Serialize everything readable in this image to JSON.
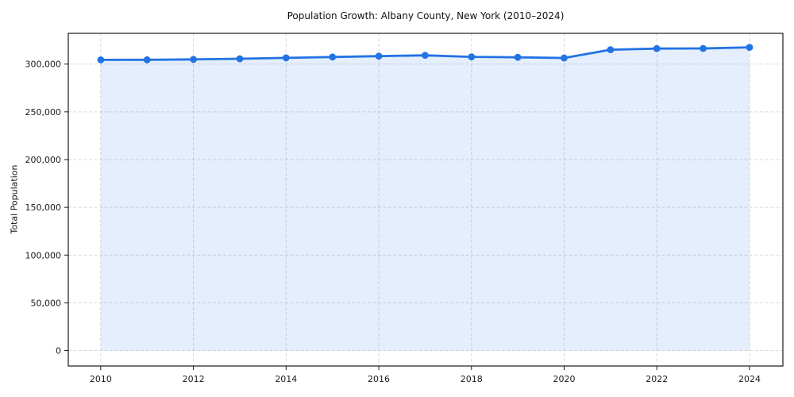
{
  "chart_data": {
    "type": "line",
    "title": "Population Growth: Albany County, New York (2010–2024)",
    "xlabel": "",
    "ylabel": "Total Population",
    "x": [
      2010,
      2011,
      2012,
      2013,
      2014,
      2015,
      2016,
      2017,
      2018,
      2019,
      2020,
      2021,
      2022,
      2023,
      2024
    ],
    "series": [
      {
        "name": "Total Population",
        "values": [
          304400,
          304500,
          304900,
          305600,
          306500,
          307400,
          308300,
          309200,
          307600,
          307100,
          306400,
          315100,
          316200,
          316400,
          317600
        ]
      }
    ],
    "x_ticks": [
      2010,
      2012,
      2014,
      2016,
      2018,
      2020,
      2022,
      2024
    ],
    "x_tick_labels": [
      "2010",
      "2012",
      "2014",
      "2016",
      "2018",
      "2020",
      "2022",
      "2024"
    ],
    "y_ticks": [
      0,
      50000,
      100000,
      150000,
      200000,
      250000,
      300000
    ],
    "y_tick_labels": [
      "0",
      "50,000",
      "100,000",
      "150,000",
      "200,000",
      "250,000",
      "300,000"
    ],
    "xlim": [
      2009.3,
      2024.72
    ],
    "ylim": [
      -16200,
      332200
    ],
    "grid": {
      "visible": true,
      "style": "dashed",
      "color": "#d9d9d9"
    },
    "legend": {
      "visible": false
    },
    "colors": {
      "line": "#2273e3",
      "marker": "#2273e3",
      "area_fill": "rgba(34, 115, 227, 0.12)",
      "spine": "#1a1a1a",
      "tick_text": "#1a1a1a",
      "background": "#ffffff"
    }
  }
}
